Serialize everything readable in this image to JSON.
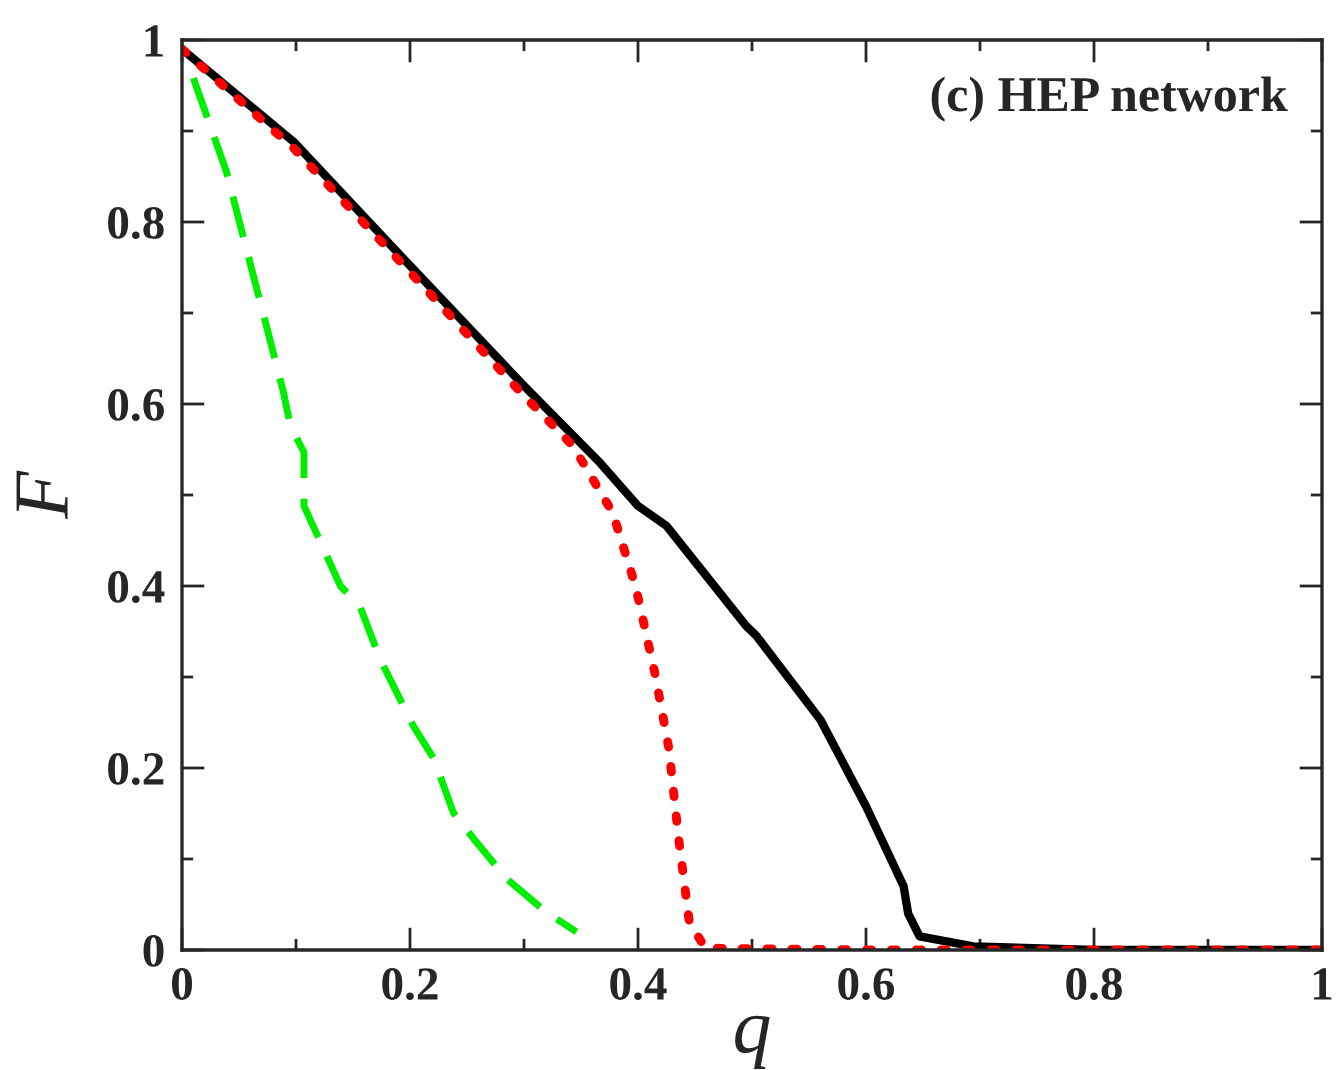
{
  "chart_data": {
    "type": "line",
    "xlabel": "q",
    "ylabel": "F",
    "annotations": [
      "(c) HEP network"
    ],
    "xlim": [
      0,
      1
    ],
    "ylim": [
      0,
      1
    ],
    "xticks": [
      0,
      0.2,
      0.4,
      0.6,
      0.8,
      1
    ],
    "yticks": [
      0,
      0.2,
      0.4,
      0.6,
      0.8,
      1
    ],
    "grid": false,
    "legend": false,
    "marker": "none",
    "series": [
      {
        "color": "#000000",
        "line_style": "solid",
        "x": [
          0,
          0.098,
          0.2,
          0.3,
          0.367,
          0.4,
          0.425,
          0.495,
          0.504,
          0.56,
          0.6,
          0.633,
          0.637,
          0.647,
          0.694,
          0.8,
          1
        ],
        "values": [
          0.99,
          0.888,
          0.752,
          0.62,
          0.535,
          0.488,
          0.466,
          0.356,
          0.345,
          0.253,
          0.158,
          0.07,
          0.04,
          0.015,
          0.004,
          0,
          0
        ]
      },
      {
        "color": "#ff0000",
        "line_style": "dotted",
        "x": [
          0,
          0.098,
          0.2,
          0.3,
          0.343,
          0.378,
          0.398,
          0.415,
          0.427,
          0.436,
          0.445,
          0.459,
          0.6,
          0.8,
          1
        ],
        "values": [
          0.99,
          0.881,
          0.745,
          0.609,
          0.554,
          0.48,
          0.399,
          0.303,
          0.222,
          0.119,
          0.031,
          0.002,
          0,
          0,
          0
        ]
      },
      {
        "color": "#00ee00",
        "line_style": "dashed",
        "x": [
          0.01,
          0.039,
          0.068,
          0.089,
          0.095,
          0.107,
          0.107,
          0.139,
          0.156,
          0.174,
          0.203,
          0.221,
          0.238,
          0.256,
          0.285,
          0.32,
          0.346
        ],
        "values": [
          0.958,
          0.855,
          0.715,
          0.613,
          0.576,
          0.547,
          0.488,
          0.4,
          0.378,
          0.319,
          0.246,
          0.21,
          0.151,
          0.122,
          0.078,
          0.041,
          0.02
        ]
      }
    ]
  }
}
